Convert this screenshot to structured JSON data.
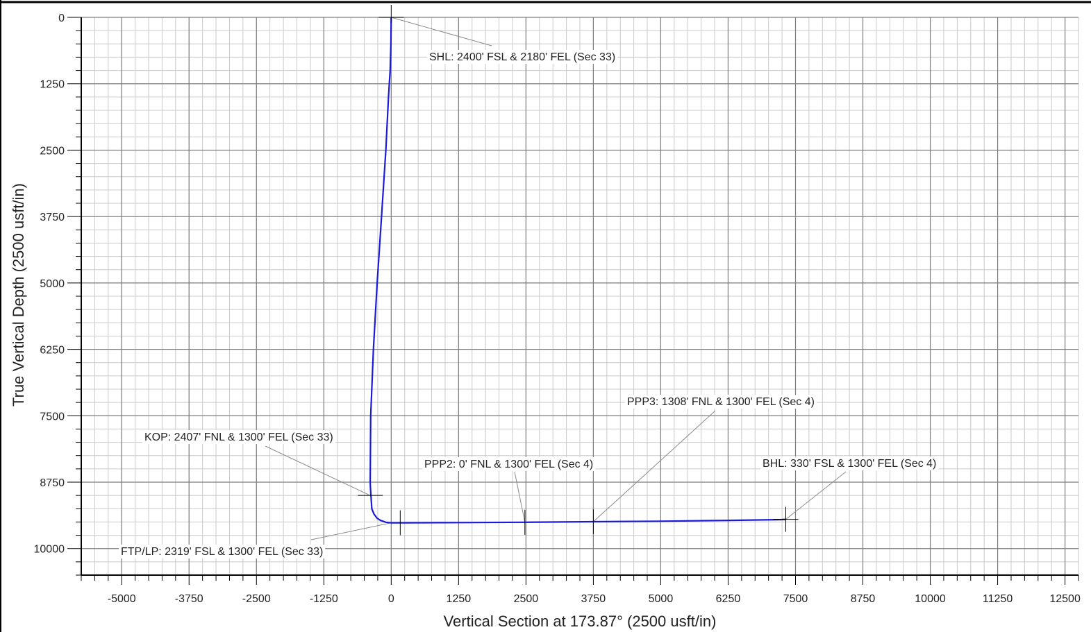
{
  "chart_data": {
    "type": "line",
    "title": "",
    "xlabel": "Vertical Section at 173.87° (2500 usft/in)",
    "ylabel": "True Vertical Depth (2500 usft/in)",
    "xlim": [
      -5750,
      12750
    ],
    "ylim": [
      0,
      10500
    ],
    "y_inverted": true,
    "grid": true,
    "x_ticks": [
      -5000,
      -3750,
      -2500,
      -1250,
      0,
      1250,
      2500,
      3750,
      5000,
      6250,
      7500,
      8750,
      10000,
      11250,
      12500
    ],
    "x_tick_labels": [
      "-5000",
      "-3750",
      "-2500",
      "-1250",
      "0",
      "1250",
      "2500",
      "3750",
      "5000",
      "6250",
      "7500",
      "8750",
      "10000",
      "11250",
      "12500"
    ],
    "y_ticks": [
      0,
      1250,
      2500,
      3750,
      5000,
      6250,
      7500,
      8750,
      10000
    ],
    "y_tick_labels": [
      "0",
      "1250",
      "2500",
      "3750",
      "5000",
      "6250",
      "7500",
      "8750",
      "10000"
    ],
    "series": [
      {
        "color": "#1a1adb",
        "x": [
          0,
          -5,
          -20,
          -50,
          -100,
          -180,
          -260,
          -330,
          -380,
          -390,
          -385,
          -360,
          -320,
          -260,
          -200,
          -100,
          0,
          200,
          1250,
          2500,
          3750,
          5000,
          6250,
          7250,
          7320
        ],
        "y": [
          0,
          500,
          1000,
          1500,
          2500,
          3750,
          5000,
          6250,
          7500,
          8750,
          8850,
          9250,
          9350,
          9430,
          9470,
          9505,
          9515,
          9515,
          9512,
          9505,
          9495,
          9485,
          9470,
          9455,
          9450
        ]
      }
    ],
    "annotations": [
      {
        "text": "SHL: 2400' FSL & 2180' FEL (Sec 33)",
        "x": 0,
        "y": 0
      },
      {
        "text": "KOP: 2407' FNL & 1300' FEL (Sec 33)",
        "x": -390,
        "y": 9000
      },
      {
        "text": "FTP/LP: 2319' FSL & 1300' FEL (Sec 33)",
        "x": 0,
        "y": 9515
      },
      {
        "text": "PPP2: 0' FNL & 1300' FEL (Sec 4)",
        "x": 2480,
        "y": 9505
      },
      {
        "text": "PPP3: 1308' FNL & 1300' FEL (Sec 4)",
        "x": 3750,
        "y": 9495
      },
      {
        "text": "BHL: 330' FSL & 1300' FEL (Sec 4)",
        "x": 7320,
        "y": 9450
      }
    ]
  }
}
